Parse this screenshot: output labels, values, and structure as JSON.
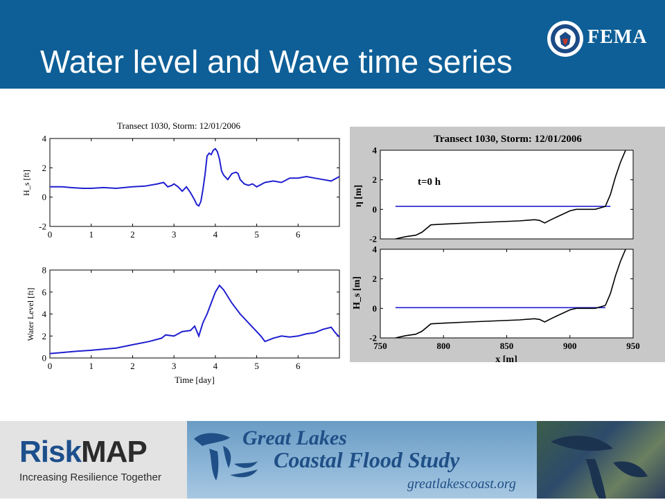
{
  "slide": {
    "title": "Water level and Wave time series"
  },
  "logo": {
    "agency": "FEMA",
    "seal_text": "U.S. DEPARTMENT OF HOMELAND SECURITY"
  },
  "footer": {
    "brand_part1": "Risk",
    "brand_part2": "MAP",
    "tagline": "Increasing Resilience Together",
    "study_line1": "Great Lakes",
    "study_line2": "Coastal Flood Study",
    "url": "greatlakescoast.org"
  },
  "colors": {
    "header": "#0e5f97",
    "series": "#1f1fd0",
    "profile": "#000000",
    "panel_bg": "#c8c8c8"
  },
  "chart_data": [
    {
      "type": "line",
      "title": "Transect 1030, Storm: 12/01/2006",
      "panels": [
        {
          "ylabel": "H_s [ft]",
          "xlim": [
            0,
            7
          ],
          "ylim": [
            -2,
            4
          ],
          "xticks": [
            "0",
            "1",
            "2",
            "3",
            "4",
            "5",
            "6"
          ],
          "yticks": [
            "-2",
            "0",
            "2",
            "4"
          ],
          "series": [
            {
              "x": [
                0,
                0.3,
                0.5,
                0.8,
                1.0,
                1.3,
                1.6,
                2.0,
                2.3,
                2.6,
                2.75,
                2.85,
                2.95,
                3.0,
                3.1,
                3.2,
                3.3,
                3.4,
                3.5,
                3.55,
                3.6,
                3.65,
                3.7,
                3.75,
                3.8,
                3.85,
                3.9,
                3.95,
                4.0,
                4.05,
                4.1,
                4.15,
                4.2,
                4.3,
                4.4,
                4.5,
                4.55,
                4.6,
                4.7,
                4.8,
                4.9,
                5.0,
                5.2,
                5.4,
                5.6,
                5.8,
                6.0,
                6.2,
                6.4,
                6.6,
                6.8,
                7.0
              ],
              "y": [
                0.7,
                0.7,
                0.65,
                0.6,
                0.6,
                0.65,
                0.6,
                0.7,
                0.75,
                0.9,
                1.0,
                0.7,
                0.8,
                0.9,
                0.7,
                0.4,
                0.7,
                0.3,
                -0.2,
                -0.5,
                -0.6,
                -0.3,
                0.5,
                1.5,
                2.8,
                3.0,
                2.9,
                3.2,
                3.3,
                3.1,
                2.6,
                1.8,
                1.5,
                1.2,
                1.6,
                1.7,
                1.6,
                1.2,
                0.9,
                0.8,
                0.9,
                0.7,
                1.0,
                1.1,
                1.0,
                1.3,
                1.3,
                1.4,
                1.3,
                1.2,
                1.1,
                1.4
              ]
            }
          ]
        },
        {
          "ylabel": "Water Level [ft]",
          "xlabel": "Time [day]",
          "xlim": [
            0,
            7
          ],
          "ylim": [
            0,
            8
          ],
          "xticks": [
            "0",
            "1",
            "2",
            "3",
            "4",
            "5",
            "6"
          ],
          "yticks": [
            "0",
            "2",
            "4",
            "6",
            "8"
          ],
          "series": [
            {
              "x": [
                0,
                0.3,
                0.6,
                1.0,
                1.3,
                1.6,
                2.0,
                2.4,
                2.7,
                2.8,
                3.0,
                3.2,
                3.4,
                3.5,
                3.6,
                3.7,
                3.8,
                3.9,
                4.0,
                4.1,
                4.2,
                4.4,
                4.6,
                4.8,
                5.0,
                5.1,
                5.2,
                5.4,
                5.6,
                5.8,
                6.0,
                6.2,
                6.4,
                6.6,
                6.8,
                6.9,
                7.0
              ],
              "y": [
                0.4,
                0.5,
                0.6,
                0.7,
                0.8,
                0.9,
                1.2,
                1.5,
                1.8,
                2.1,
                2.0,
                2.4,
                2.5,
                2.9,
                2.0,
                3.2,
                4.0,
                5.0,
                6.0,
                6.6,
                6.2,
                5.0,
                4.0,
                3.2,
                2.4,
                2.0,
                1.5,
                1.8,
                2.0,
                1.9,
                2.0,
                2.2,
                2.3,
                2.6,
                2.8,
                2.3,
                1.9
              ]
            }
          ]
        }
      ]
    },
    {
      "type": "line",
      "title": "Transect 1030, Storm: 12/01/2006",
      "annotation": "t=0 h",
      "panels": [
        {
          "ylabel": "η [m]",
          "xlim": [
            750,
            950
          ],
          "ylim": [
            -2,
            4
          ],
          "yticks": [
            "-2",
            "0",
            "2",
            "4"
          ],
          "series": [
            {
              "name": "water level",
              "x": [
                762,
                932
              ],
              "y": [
                0.2,
                0.2
              ]
            },
            {
              "name": "profile",
              "x": [
                762,
                770,
                778,
                783,
                790,
                800,
                820,
                840,
                860,
                872,
                876,
                880,
                885,
                890,
                900,
                905,
                920,
                928,
                932,
                936,
                940,
                944
              ],
              "y": [
                -2.0,
                -1.85,
                -1.75,
                -1.55,
                -1.05,
                -1.0,
                -0.92,
                -0.85,
                -0.78,
                -0.7,
                -0.75,
                -0.92,
                -0.7,
                -0.5,
                -0.1,
                0.0,
                0.0,
                0.2,
                1.0,
                2.2,
                3.2,
                4.0
              ]
            }
          ]
        },
        {
          "ylabel": "H_s [m]",
          "xlabel": "x [m]",
          "xlim": [
            750,
            950
          ],
          "ylim": [
            -2,
            4
          ],
          "xticks": [
            "750",
            "800",
            "850",
            "900",
            "950"
          ],
          "yticks": [
            "-2",
            "0",
            "2",
            "4"
          ],
          "series": [
            {
              "name": "wave height",
              "x": [
                762,
                928
              ],
              "y": [
                0.05,
                0.05
              ]
            },
            {
              "name": "profile",
              "x": [
                762,
                770,
                778,
                783,
                790,
                800,
                820,
                840,
                860,
                872,
                876,
                880,
                885,
                890,
                900,
                905,
                920,
                928,
                932,
                936,
                940,
                944
              ],
              "y": [
                -2.0,
                -1.85,
                -1.75,
                -1.55,
                -1.05,
                -1.0,
                -0.92,
                -0.85,
                -0.78,
                -0.7,
                -0.75,
                -0.92,
                -0.7,
                -0.5,
                -0.1,
                0.0,
                0.0,
                0.2,
                1.0,
                2.2,
                3.2,
                4.0
              ]
            }
          ]
        }
      ]
    }
  ]
}
